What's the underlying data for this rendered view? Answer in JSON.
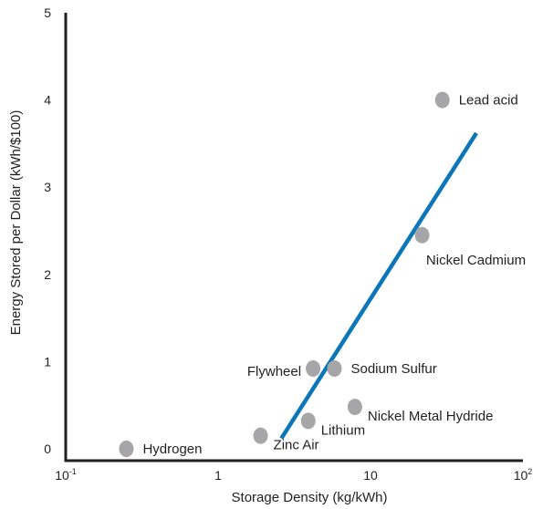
{
  "chart_data": {
    "type": "scatter",
    "title": "",
    "xlabel": "Storage Density (kg/kWh)",
    "ylabel": "Energy Stored per Dollar (kWh/$100)",
    "x_scale": "log",
    "xlim": [
      0.1,
      100
    ],
    "ylim": [
      0,
      5
    ],
    "x_ticks": [
      {
        "value": 0.1,
        "base": "10",
        "exp": "-1"
      },
      {
        "value": 1,
        "base": "1",
        "exp": ""
      },
      {
        "value": 10,
        "base": "10",
        "exp": ""
      },
      {
        "value": 100,
        "base": "10",
        "exp": "2"
      }
    ],
    "y_ticks": [
      "0",
      "1",
      "2",
      "3",
      "4",
      "5"
    ],
    "grid": false,
    "legend": false,
    "marker_color": "#a6a6a8",
    "line_color": "#0b76b8",
    "points": [
      {
        "label": "Hydrogen",
        "x": 0.25,
        "y": 0.0,
        "anchor": "right"
      },
      {
        "label": "Zinc Air",
        "x": 1.9,
        "y": 0.15,
        "anchor": "below-right"
      },
      {
        "label": "Lithium",
        "x": 3.9,
        "y": 0.32,
        "anchor": "below-right"
      },
      {
        "label": "Flywheel",
        "x": 4.2,
        "y": 0.92,
        "anchor": "left"
      },
      {
        "label": "Sodium Sulfur",
        "x": 5.8,
        "y": 0.92,
        "anchor": "right"
      },
      {
        "label": "Nickel Metal Hydride",
        "x": 7.9,
        "y": 0.48,
        "anchor": "below-right"
      },
      {
        "label": "Nickel Cadmium",
        "x": 21.8,
        "y": 2.45,
        "anchor": "below"
      },
      {
        "label": "Lead acid",
        "x": 29.6,
        "y": 4.0,
        "anchor": "right"
      }
    ],
    "trend_line": {
      "x": [
        2.6,
        49.5
      ],
      "y": [
        0.12,
        3.62
      ]
    }
  }
}
